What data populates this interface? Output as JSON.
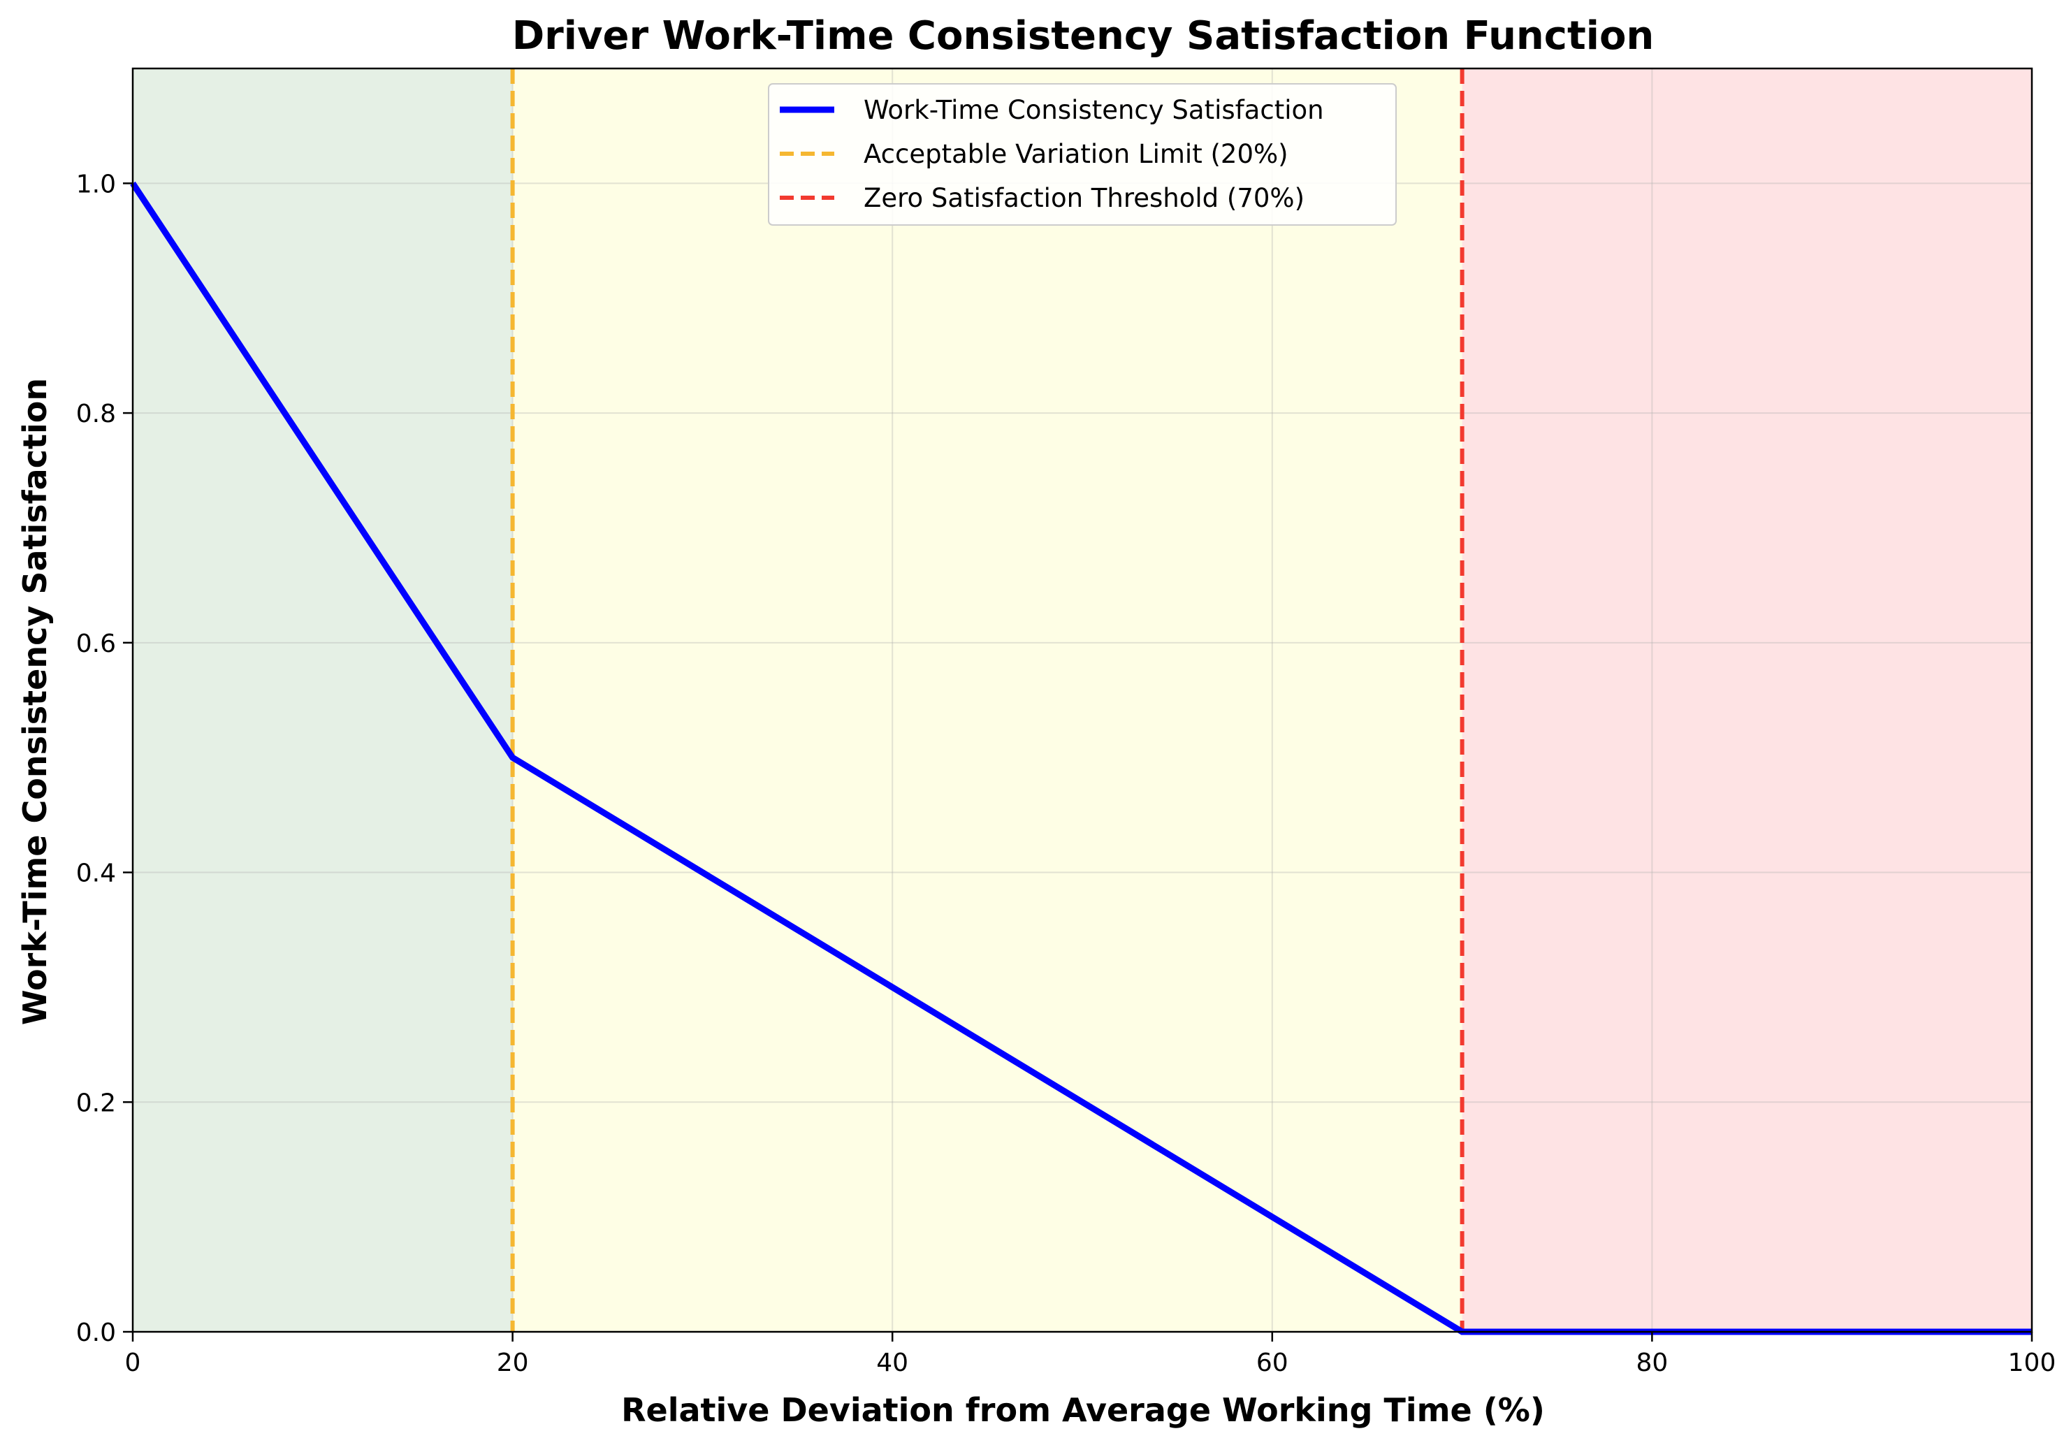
{
  "chart_data": {
    "type": "line",
    "title": "Driver Work-Time Consistency Satisfaction Function",
    "xlabel": "Relative Deviation from Average Working Time (%)",
    "ylabel": "Work-Time Consistency Satisfaction",
    "xlim": [
      0,
      100
    ],
    "ylim": [
      0,
      1.1
    ],
    "xticks": [
      "0",
      "20",
      "40",
      "60",
      "80",
      "100"
    ],
    "yticks": [
      "0.0",
      "0.2",
      "0.4",
      "0.6",
      "0.8",
      "1.0"
    ],
    "grid": true,
    "legend_position": "upper center",
    "regions": [
      {
        "x0": 0,
        "x1": 20,
        "color": "#e5f0e5"
      },
      {
        "x0": 20,
        "x1": 70,
        "color": "#fefee5"
      },
      {
        "x0": 70,
        "x1": 100,
        "color": "#fee3e4"
      }
    ],
    "series": [
      {
        "name": "Work-Time Consistency Satisfaction",
        "color": "#0000ff",
        "style": "solid",
        "x": [
          0,
          20,
          70,
          100
        ],
        "y": [
          1.0,
          0.5,
          0.0,
          0.0
        ]
      }
    ],
    "reference_lines": [
      {
        "name": "Acceptable Variation Limit (20%)",
        "x": 20,
        "color": "#f5b731",
        "style": "dashed"
      },
      {
        "name": "Zero Satisfaction Threshold (70%)",
        "x": 70,
        "color": "#f23a2f",
        "style": "dashed"
      }
    ]
  }
}
